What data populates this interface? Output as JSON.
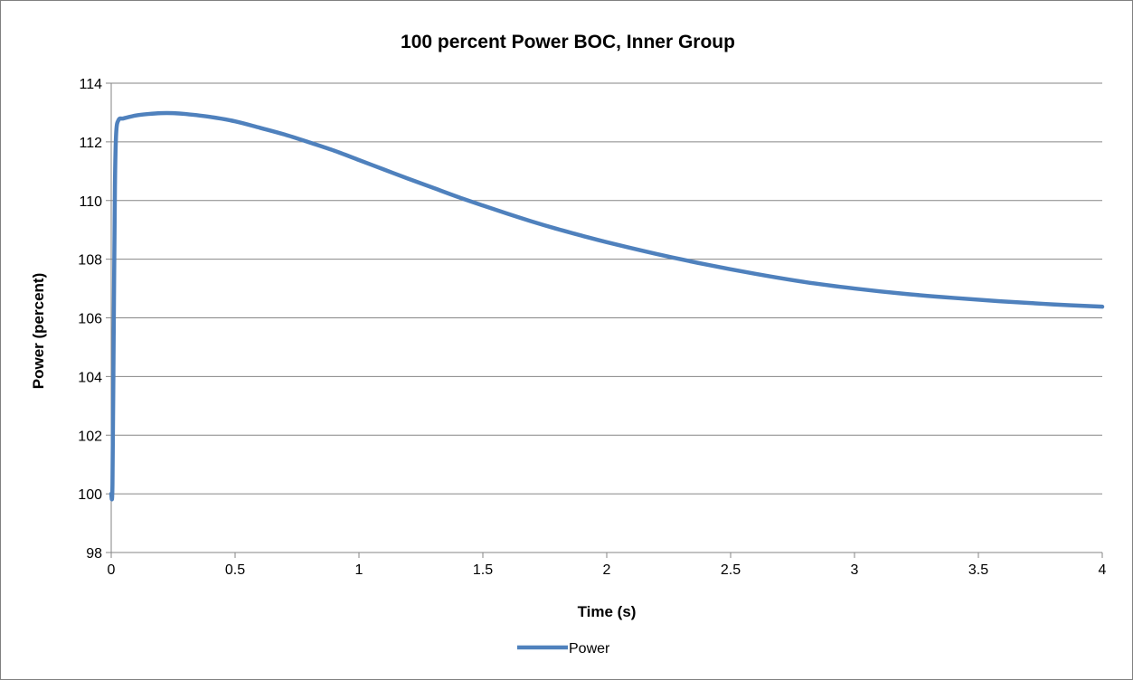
{
  "chart_data": {
    "type": "line",
    "title": "100 percent Power BOC, Inner Group",
    "xlabel": "Time (s)",
    "ylabel": "Power (percent)",
    "xlim": [
      0,
      4
    ],
    "ylim": [
      98,
      114
    ],
    "x_ticks": [
      "0",
      "0.5",
      "1",
      "1.5",
      "2",
      "2.5",
      "3",
      "3.5",
      "4"
    ],
    "y_ticks": [
      "98",
      "100",
      "102",
      "104",
      "106",
      "108",
      "110",
      "112",
      "114"
    ],
    "grid": "horizontal",
    "legend_position": "bottom",
    "series": [
      {
        "name": "Power",
        "color": "#4f81bd",
        "x": [
          0,
          0.005,
          0.01,
          0.015,
          0.02,
          0.03,
          0.05,
          0.1,
          0.15,
          0.2,
          0.25,
          0.3,
          0.4,
          0.5,
          0.6,
          0.7,
          0.8,
          0.9,
          1.0,
          1.1,
          1.2,
          1.3,
          1.4,
          1.5,
          1.6,
          1.7,
          1.8,
          1.9,
          2.0,
          2.2,
          2.4,
          2.6,
          2.8,
          3.0,
          3.2,
          3.4,
          3.6,
          3.8,
          4.0
        ],
        "y": [
          100,
          100.3,
          105.5,
          110.5,
          112.3,
          112.75,
          112.8,
          112.9,
          112.95,
          112.98,
          112.98,
          112.95,
          112.85,
          112.7,
          112.48,
          112.25,
          111.98,
          111.7,
          111.38,
          111.06,
          110.74,
          110.43,
          110.12,
          109.83,
          109.55,
          109.28,
          109.03,
          108.8,
          108.58,
          108.18,
          107.82,
          107.5,
          107.22,
          107.0,
          106.82,
          106.68,
          106.56,
          106.46,
          106.38
        ]
      }
    ]
  }
}
